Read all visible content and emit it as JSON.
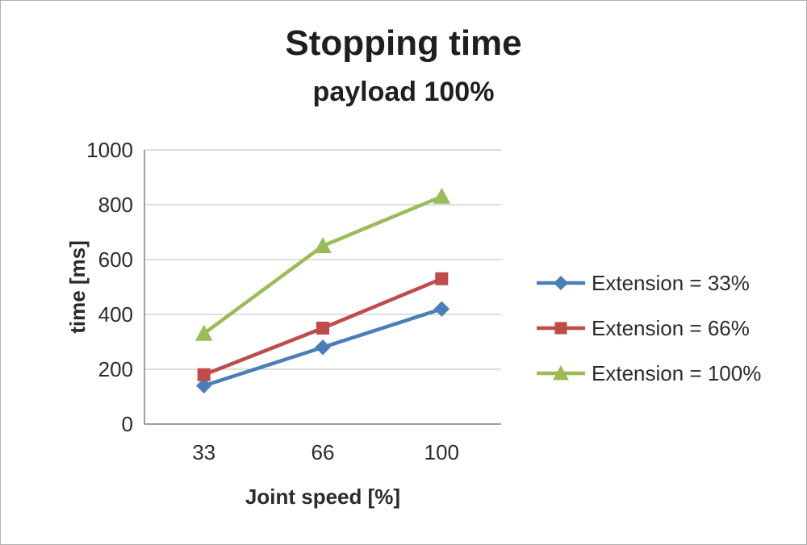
{
  "chart_data": {
    "type": "line",
    "title": "Stopping time",
    "subtitle": "payload 100%",
    "xlabel": "Joint speed [%]",
    "ylabel": "time [ms]",
    "categories": [
      "33",
      "66",
      "100"
    ],
    "series": [
      {
        "name": "Extension = 33%",
        "values": [
          140,
          280,
          420
        ],
        "color": "#4a7ebb",
        "marker": "diamond"
      },
      {
        "name": "Extension = 66%",
        "values": [
          180,
          350,
          530
        ],
        "color": "#bf4b4b",
        "marker": "square"
      },
      {
        "name": "Extension = 100%",
        "values": [
          330,
          650,
          830
        ],
        "color": "#9bbb59",
        "marker": "triangle"
      }
    ],
    "ylim": [
      0,
      1000
    ],
    "yticks": [
      0,
      200,
      400,
      600,
      800,
      1000
    ],
    "grid": true,
    "legend_position": "right",
    "axis_color": "#808080",
    "grid_color": "#c9c9c9",
    "tick_label_color": "#2b2b2b"
  }
}
